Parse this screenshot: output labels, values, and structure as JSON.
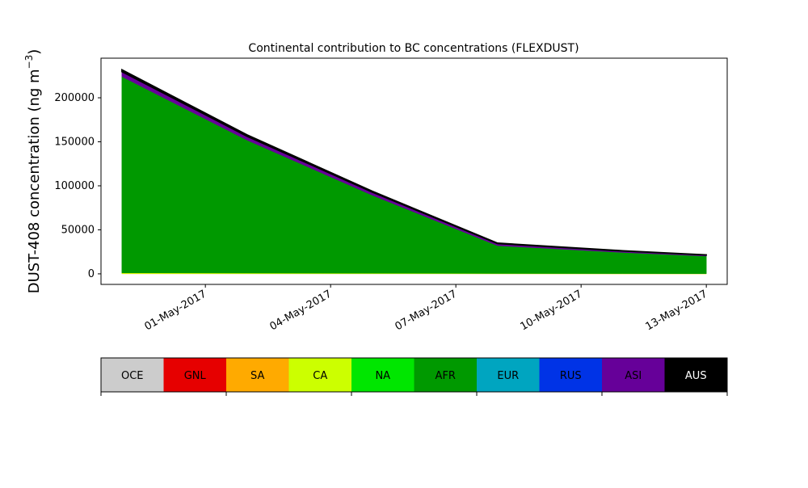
{
  "chart_data": {
    "type": "area",
    "stacked": true,
    "title": "Continental contribution to BC concentrations (FLEXDUST)",
    "ylabel_main": "DUST-408 concentration (ng m",
    "ylabel_sup": "−3",
    "ylabel_close": ")",
    "xlabel": "",
    "x": [
      "2017-04-29",
      "2017-05-02",
      "2017-05-05",
      "2017-05-08",
      "2017-05-11",
      "2017-05-13"
    ],
    "xlim": [
      "2017-04-28 12:00",
      "2017-05-13 12:00"
    ],
    "ylim": [
      -12000,
      245000
    ],
    "yticks": [
      0,
      50000,
      100000,
      150000,
      200000
    ],
    "ytick_labels": [
      "0",
      "50000",
      "100000",
      "150000",
      "200000"
    ],
    "xticks": [
      "2017-05-01",
      "2017-05-04",
      "2017-05-07",
      "2017-05-10",
      "2017-05-13"
    ],
    "xtick_labels": [
      "01-May-2017",
      "04-May-2017",
      "07-May-2017",
      "10-May-2017",
      "13-May-2017"
    ],
    "grid": false,
    "series": [
      {
        "name": "OCE",
        "color": "#cccccc",
        "values": [
          0,
          0,
          0,
          0,
          0,
          0
        ]
      },
      {
        "name": "GNL",
        "color": "#e60000",
        "values": [
          0,
          0,
          0,
          0,
          0,
          0
        ]
      },
      {
        "name": "SA",
        "color": "#ffaa00",
        "values": [
          300,
          250,
          200,
          100,
          60,
          50
        ]
      },
      {
        "name": "CA",
        "color": "#ccff00",
        "values": [
          800,
          600,
          500,
          300,
          200,
          150
        ]
      },
      {
        "name": "NA",
        "color": "#00e600",
        "values": [
          0,
          0,
          0,
          0,
          0,
          0
        ]
      },
      {
        "name": "AFR",
        "color": "#009900",
        "values": [
          223000,
          151000,
          88500,
          31600,
          24000,
          19900
        ]
      },
      {
        "name": "EUR",
        "color": "#00a5c0",
        "values": [
          0,
          0,
          0,
          0,
          0,
          0
        ]
      },
      {
        "name": "RUS",
        "color": "#0033e6",
        "values": [
          0,
          0,
          0,
          0,
          0,
          0
        ]
      },
      {
        "name": "ASI",
        "color": "#660099",
        "values": [
          5500,
          4300,
          3500,
          2300,
          1600,
          1200
        ]
      },
      {
        "name": "AUS",
        "color": "#000000",
        "values": [
          2400,
          1800,
          1200,
          700,
          500,
          400
        ]
      }
    ],
    "legend_placement": "bottom-colorbar"
  }
}
